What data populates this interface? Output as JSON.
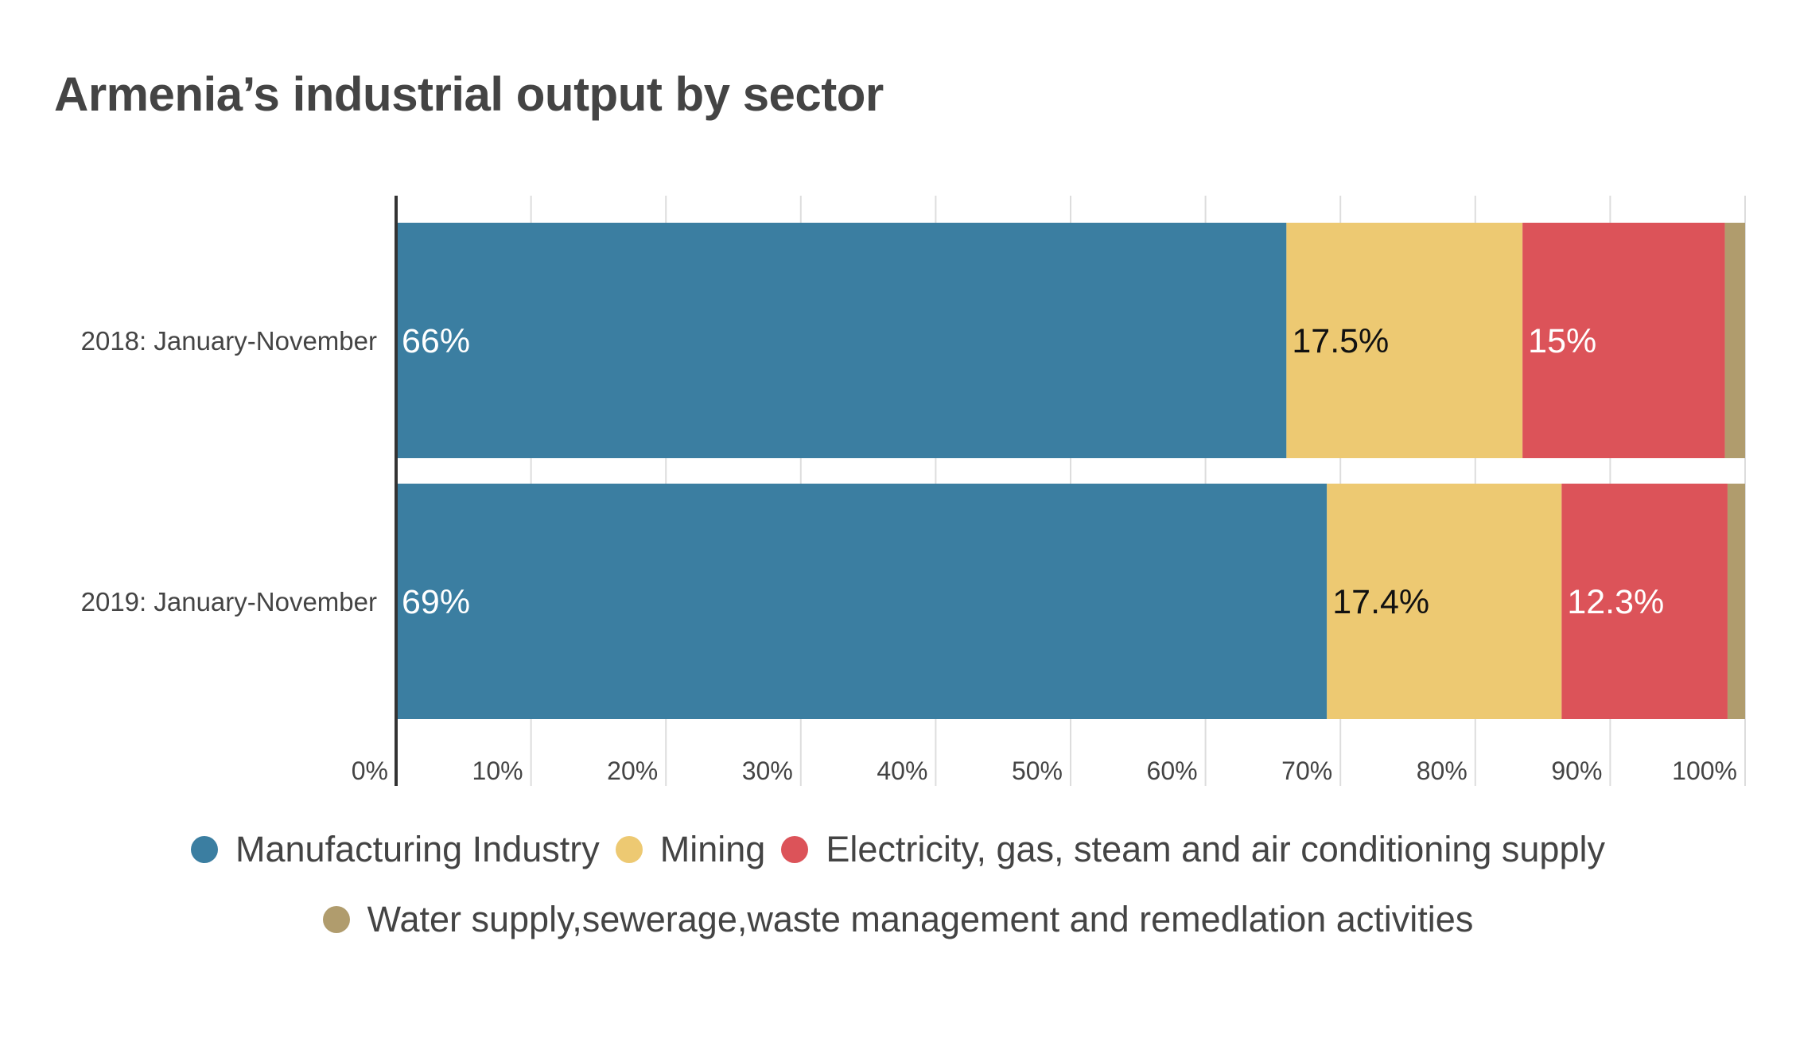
{
  "chart_data": {
    "type": "bar",
    "orientation": "horizontal",
    "stacked": true,
    "title": "Armenia’s industrial output by sector",
    "categories": [
      "2018: January-November",
      "2019: January-November"
    ],
    "series": [
      {
        "name": "Manufacturing Industry",
        "color": "#3b7ea1",
        "values": [
          66,
          69
        ],
        "labels": [
          "66%",
          "69%"
        ],
        "label_color": "#ffffff"
      },
      {
        "name": "Mining",
        "color": "#edc972",
        "values": [
          17.5,
          17.4
        ],
        "labels": [
          "17.5%",
          "17.4%"
        ],
        "label_color": "#111111"
      },
      {
        "name": "Electricity, gas, steam and air conditioning supply",
        "color": "#dc5359",
        "values": [
          15,
          12.3
        ],
        "labels": [
          "15%",
          "12.3%"
        ],
        "label_color": "#ffffff"
      },
      {
        "name": "Water supply,sewerage,waste management and remedlation activities",
        "color": "#b09c6d",
        "values": [
          1.5,
          1.3
        ],
        "labels": [
          "",
          ""
        ],
        "label_color": "#ffffff"
      }
    ],
    "xlim": [
      0,
      100
    ],
    "xticks": [
      "0%",
      "10%",
      "20%",
      "30%",
      "40%",
      "50%",
      "60%",
      "70%",
      "80%",
      "90%",
      "100%"
    ],
    "grid": true,
    "legend_position": "bottom"
  }
}
